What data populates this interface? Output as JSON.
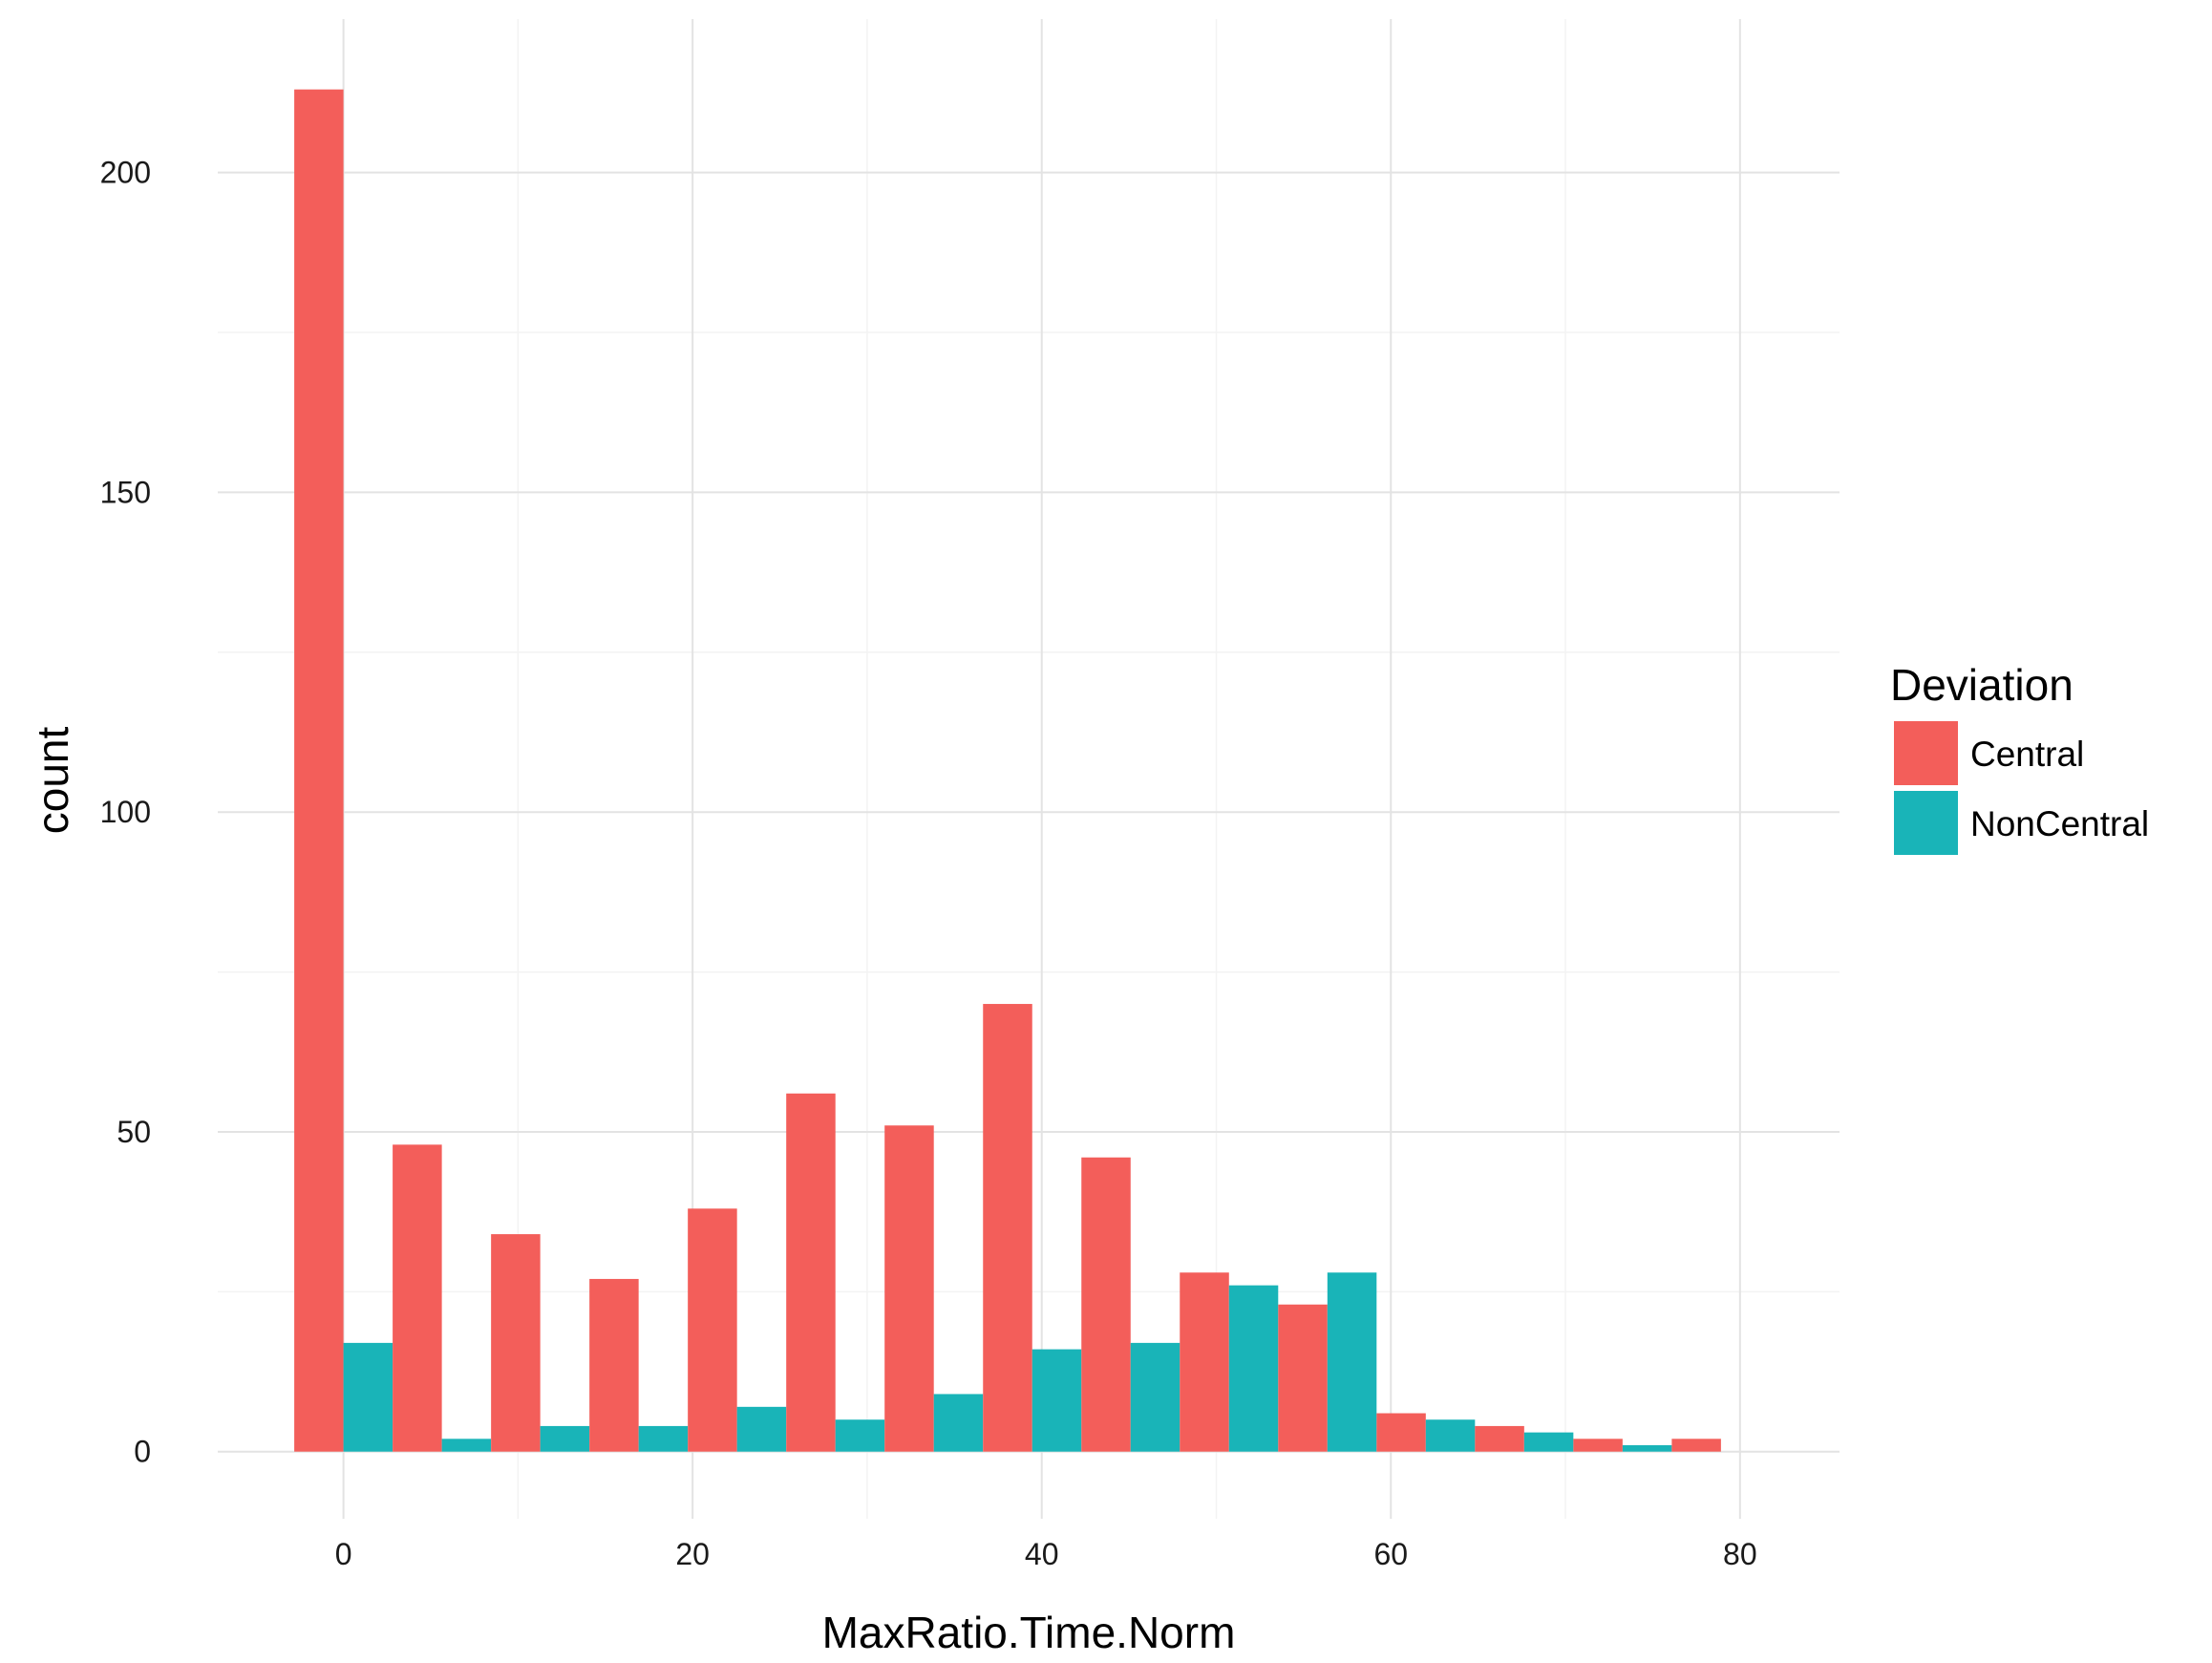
{
  "chart_data": {
    "type": "bar",
    "xlabel": "MaxRatio.Time.Norm",
    "ylabel": "count",
    "xlim": [
      -7.2,
      85.7
    ],
    "ylim": [
      -10.5,
      224
    ],
    "x_ticks": [
      0,
      20,
      40,
      60,
      80
    ],
    "x_tick_labels": [
      "0",
      "20",
      "40",
      "60",
      "80"
    ],
    "y_ticks": [
      0,
      50,
      100,
      150,
      200
    ],
    "y_tick_labels": [
      "0",
      "50",
      "100",
      "150",
      "200"
    ],
    "grid": true,
    "bin_width": 5.636,
    "bin_centers": [
      0,
      5.636,
      11.273,
      16.909,
      22.545,
      28.182,
      33.818,
      39.455,
      45.091,
      50.727,
      56.364,
      62.0,
      67.636,
      73.273,
      78.909
    ],
    "legend": {
      "title": "Deviation",
      "position": "right"
    },
    "series": [
      {
        "name": "Central",
        "color": "#F35E5A",
        "values": [
          213,
          48,
          34,
          27,
          38,
          56,
          51,
          70,
          46,
          28,
          23,
          6,
          4,
          2,
          2
        ]
      },
      {
        "name": "NonCentral",
        "color": "#19B4B8",
        "values": [
          17,
          2,
          4,
          4,
          7,
          5,
          9,
          16,
          17,
          26,
          28,
          5,
          3,
          1,
          0
        ]
      }
    ]
  }
}
